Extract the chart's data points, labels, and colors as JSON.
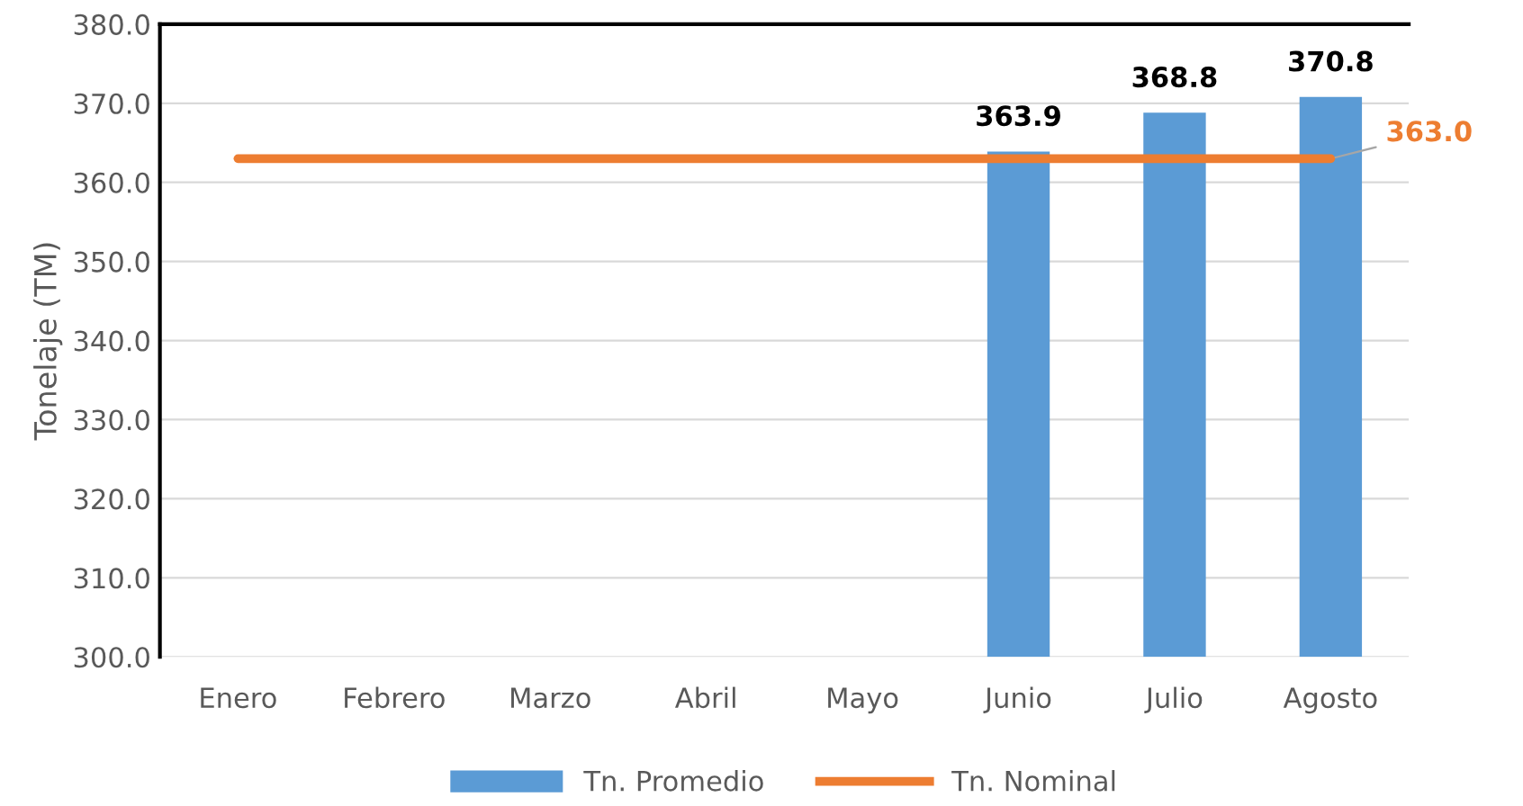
{
  "chart_data": {
    "type": "bar",
    "ylabel": "Tonelaje (TM)",
    "categories": [
      "Enero",
      "Febrero",
      "Marzo",
      "Abril",
      "Mayo",
      "Junio",
      "Julio",
      "Agosto"
    ],
    "series": [
      {
        "name": "Tn. Promedio",
        "color": "#5b9bd5",
        "values": [
          null,
          null,
          null,
          null,
          null,
          363.9,
          368.8,
          370.8
        ],
        "value_labels": [
          null,
          null,
          null,
          null,
          null,
          "363.9",
          "368.8",
          "370.8"
        ]
      },
      {
        "name": "Tn. Nominal",
        "type": "line",
        "color": "#ed7d31",
        "values": [
          363.0,
          363.0,
          363.0,
          363.0,
          363.0,
          363.0,
          363.0,
          363.0
        ],
        "value_labels": [
          null,
          null,
          null,
          null,
          null,
          null,
          null,
          "363.0"
        ]
      }
    ],
    "ylim": [
      300,
      380
    ],
    "yticks": [
      {
        "value": 300,
        "label": "300.0"
      },
      {
        "value": 310,
        "label": "310.0"
      },
      {
        "value": 320,
        "label": "320.0"
      },
      {
        "value": 330,
        "label": "330.0"
      },
      {
        "value": 340,
        "label": "340.0"
      },
      {
        "value": 350,
        "label": "350.0"
      },
      {
        "value": 360,
        "label": "360.0"
      },
      {
        "value": 370,
        "label": "370.0"
      },
      {
        "value": 380,
        "label": "380.0"
      }
    ],
    "grid": "y",
    "legend": "bottom"
  }
}
